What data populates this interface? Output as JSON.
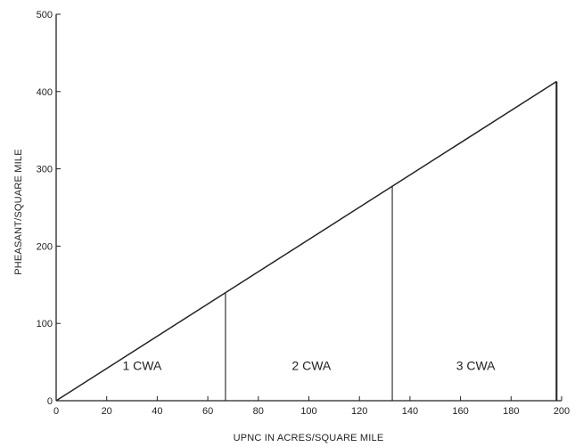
{
  "chart_data": {
    "type": "line",
    "title": "",
    "xlabel": "UPNC IN ACRES/SQUARE MILE",
    "ylabel": "PHEASANT/SQUARE MILE",
    "xlim": [
      0,
      200
    ],
    "ylim": [
      0,
      500
    ],
    "x_ticks": [
      0,
      20,
      40,
      60,
      80,
      100,
      120,
      140,
      160,
      180,
      200
    ],
    "y_ticks": [
      0,
      100,
      200,
      300,
      400,
      500
    ],
    "grid": false,
    "series": [
      {
        "x": [
          0,
          198
        ],
        "y": [
          0,
          413
        ]
      }
    ],
    "verticals": [
      {
        "x": 67,
        "y": 139
      },
      {
        "x": 133,
        "y": 277
      },
      {
        "x": 198,
        "y": 413
      }
    ],
    "annotations": [
      {
        "text": "1 CWA",
        "x": 34,
        "y": 40
      },
      {
        "text": "2  CWA",
        "x": 101,
        "y": 40
      },
      {
        "text": "3 CWA",
        "x": 166,
        "y": 40
      }
    ]
  }
}
